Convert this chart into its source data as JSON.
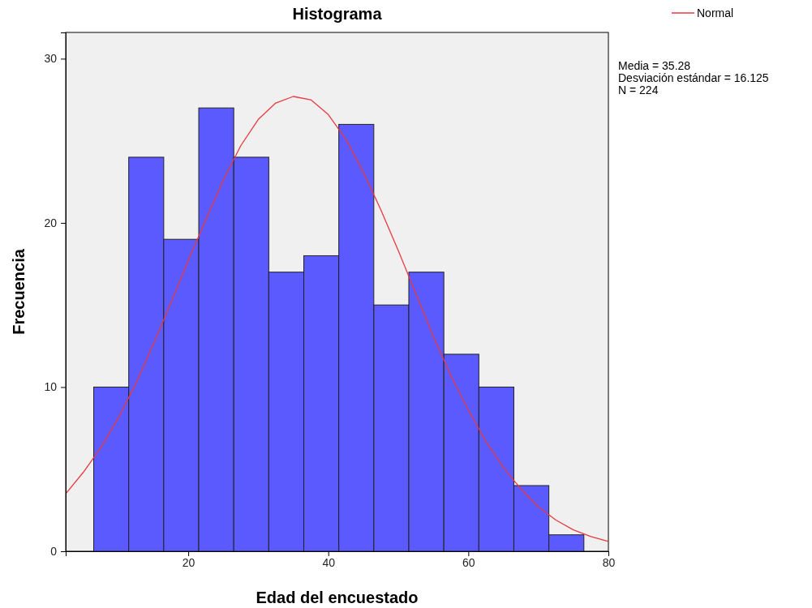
{
  "chart_data": {
    "type": "histogram",
    "title": "Histograma",
    "xlabel": "Edad del encuestado",
    "ylabel": "Frecuencia",
    "bins": [
      6.5,
      11.5,
      16.5,
      21.5,
      26.5,
      31.5,
      36.5,
      41.5,
      46.5,
      51.5,
      56.5,
      61.5,
      66.5,
      71.5,
      76.5
    ],
    "series": [
      {
        "color": "#5a5aff",
        "values": [
          10,
          24,
          19,
          27,
          24,
          17,
          18,
          26,
          15,
          17,
          12,
          10,
          4,
          1
        ]
      },
      {
        "type": "line",
        "name": "Normal",
        "color": "#e8393f",
        "x": [
          2.5,
          5,
          7.5,
          10,
          12.5,
          15,
          17.5,
          20,
          22.5,
          25,
          27.5,
          30,
          32.5,
          35,
          37.5,
          40,
          42.5,
          45,
          47.5,
          50,
          52.5,
          55,
          57.5,
          60,
          62.5,
          65,
          67.5,
          70,
          72.5,
          75,
          77.5,
          80
        ],
        "values": [
          3.5,
          4.8,
          6.3,
          8.1,
          10.2,
          12.6,
          15.1,
          17.7,
          20.2,
          22.6,
          24.7,
          26.3,
          27.3,
          27.7,
          27.5,
          26.6,
          25.1,
          23.1,
          20.8,
          18.3,
          15.7,
          13.1,
          10.7,
          8.6,
          6.7,
          5.1,
          3.8,
          2.7,
          1.9,
          1.3,
          0.9,
          0.6
        ]
      }
    ],
    "xlim": [
      2.5,
      80
    ],
    "xticks": [
      20,
      40,
      60,
      80
    ],
    "ylim": [
      0,
      31.6
    ],
    "yticks": [
      0,
      10,
      20,
      30
    ],
    "legend": "top right",
    "annotations": [
      "Media = 35.28",
      "Desviación estándar = 16.125",
      "N = 224"
    ]
  }
}
